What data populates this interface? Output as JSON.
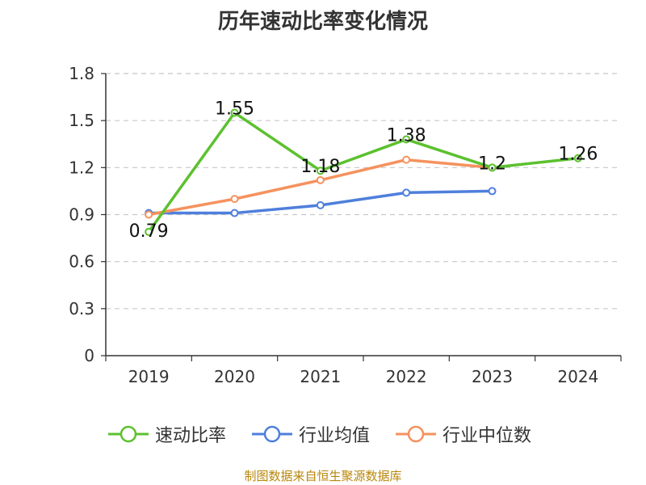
{
  "chart_data": {
    "type": "line",
    "title": "历年速动比率变化情况",
    "categories": [
      "2019",
      "2020",
      "2021",
      "2022",
      "2023",
      "2024"
    ],
    "ylim": [
      0,
      1.8
    ],
    "yticks": [
      "0",
      "0.3",
      "0.6",
      "0.9",
      "1.2",
      "1.5",
      "1.8"
    ],
    "grid": "horizontal dashed",
    "legend_position": "bottom",
    "series": [
      {
        "name": "速动比率",
        "color": "#5cc12f",
        "values": [
          0.79,
          1.55,
          1.18,
          1.38,
          1.2,
          1.26
        ],
        "labels": [
          "0.79",
          "1.55",
          "1.18",
          "1.38",
          "1.2",
          "1.26"
        ]
      },
      {
        "name": "行业均值",
        "color": "#4f7fdc",
        "values": [
          0.91,
          0.91,
          0.96,
          1.04,
          1.05,
          null
        ]
      },
      {
        "name": "行业中位数",
        "color": "#f5925e",
        "values": [
          0.9,
          1.0,
          1.12,
          1.25,
          1.2,
          null
        ]
      }
    ]
  },
  "footer": "制图数据来自恒生聚源数据库"
}
